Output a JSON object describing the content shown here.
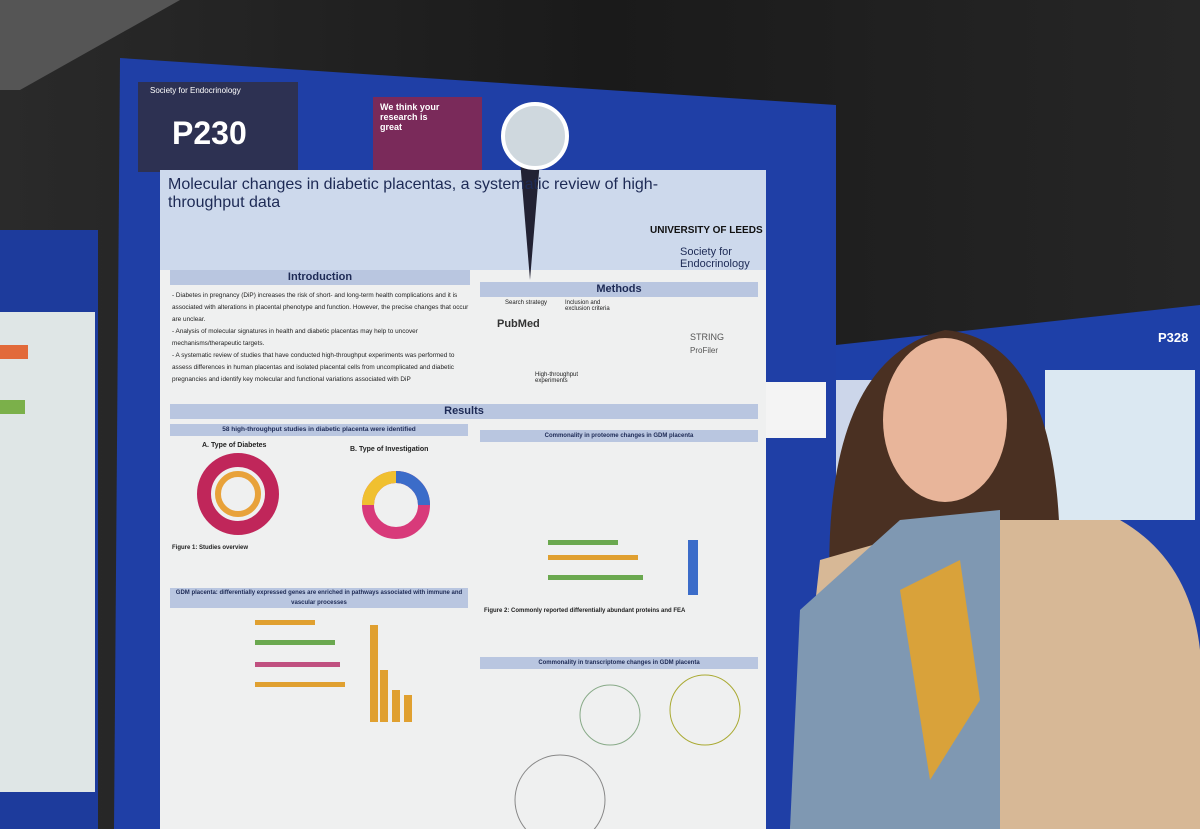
{
  "board": {
    "number": "P230",
    "org": "Society for Endocrinology"
  },
  "sticker": {
    "text": "We think your research is great"
  },
  "poster": {
    "title": "Molecular changes in diabetic placentas, a systematic review of high-throughput data",
    "logos": [
      "UNIVERSITY OF LEEDS",
      "Society for Endocrinology"
    ],
    "introduction": {
      "heading": "Introduction",
      "bullets": [
        "- Diabetes in pregnancy (DiP) increases the risk of short- and long-term health complications and it is associated with alterations in placental phenotype and function. However, the precise changes that occur are unclear.",
        "- Analysis of molecular signatures in health and diabetic placentas may help to uncover mechanisms/therapeutic targets.",
        "- A systematic review of studies that have conducted high-throughput experiments was performed to assess differences in human placentas and isolated placental cells from uncomplicated and diabetic pregnancies and identify key molecular and functional variations associated with DiP"
      ]
    },
    "methods": {
      "heading": "Methods",
      "steps": [
        "Search strategy",
        "Inclusion and exclusion criteria",
        "PubMed",
        "High-throughput experiments",
        "STRING",
        "ProFiler"
      ]
    },
    "results": {
      "heading": "Results",
      "summary": "58 high-throughput studies in diabetic placenta were identified",
      "panel_a": "A. Type of Diabetes",
      "panel_b": "B. Type of Investigation",
      "figure1": "Figure 1: Studies overview",
      "proteome": "Commonality in proteome changes in GDM placenta",
      "gdm": "GDM placenta: differentially expressed genes are enriched in pathways associated with immune and vascular processes",
      "figure2": "Figure 2: Commonly reported differentially abundant proteins and FEA",
      "transcriptome": "Commonality in transcriptome changes in GDM placenta"
    }
  },
  "neighbor_poster": {
    "number": "P328"
  }
}
